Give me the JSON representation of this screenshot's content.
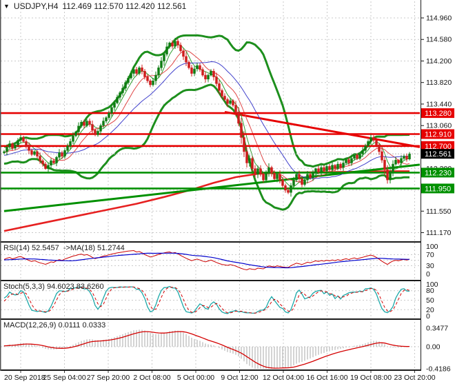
{
  "window": {
    "dropdown_icon": "▼",
    "symbol_title": "USDJPY,H4",
    "ohlc_readout": "112.469 112.570 112.420 112.561"
  },
  "colors": {
    "background": "#ffffff",
    "grid": "#c9c9c9",
    "bull_candle": "#0e7d12",
    "bear_candle": "#cf1d1d",
    "bollinger_band": "#1d8f1d",
    "resistance_line": "#e60000",
    "support_line": "#009000",
    "trend_red": "#e60000",
    "trend_green": "#009000",
    "slow_ma_red": "#e62020",
    "fast_ma_green": "#2f9e2f",
    "fast_ma_red": "#e04545",
    "fast_ma_blue": "#4040cc",
    "current_price_badge": "#000000",
    "rsi_line": "#cc0000",
    "rsi_ma_line": "#0000cc",
    "stoch_k_line": "#1ba8a8",
    "stoch_d_line": "#d40000",
    "macd_histogram": "#a8a8a8",
    "macd_signal": "#d40000"
  },
  "chart_data": {
    "type": "candlestick",
    "title": "USDJPY,H4",
    "symbol": "USDJPY",
    "timeframe": "H4",
    "last_ohlc": {
      "open": 112.469,
      "high": 112.57,
      "low": 112.42,
      "close": 112.561
    },
    "x_tick_labels": [
      "20 Sep 2018",
      "25 Sep 04:00",
      "27 Sep 20:00",
      "2 Oct 08:00",
      "5 Oct 00:00",
      "9 Oct 12:00",
      "12 Oct 04:00",
      "16 Oct 16:00",
      "19 Oct 08:00",
      "23 Oct 20:00"
    ],
    "y_tick_labels": [
      "114.960",
      "114.580",
      "114.200",
      "113.820",
      "113.440",
      "113.060",
      "112.300",
      "111.550",
      "111.170"
    ],
    "y_range": [
      111.05,
      115.27
    ],
    "closes": [
      112.6,
      112.68,
      112.74,
      112.66,
      112.72,
      112.8,
      112.85,
      112.78,
      112.7,
      112.62,
      112.55,
      112.6,
      112.52,
      112.44,
      112.38,
      112.3,
      112.36,
      112.44,
      112.4,
      112.5,
      112.58,
      112.52,
      112.62,
      112.7,
      112.78,
      112.88,
      112.95,
      113.05,
      113.12,
      113.06,
      113.14,
      113.08,
      112.98,
      112.9,
      112.96,
      113.06,
      113.14,
      113.2,
      113.28,
      113.38,
      113.46,
      113.56,
      113.64,
      113.72,
      113.82,
      113.9,
      113.98,
      114.05,
      113.98,
      114.08,
      114.02,
      113.92,
      113.85,
      113.78,
      113.85,
      113.95,
      114.08,
      114.2,
      114.32,
      114.45,
      114.52,
      114.46,
      114.55,
      114.48,
      114.38,
      114.28,
      114.18,
      114.08,
      113.98,
      114.06,
      114.12,
      114.05,
      113.95,
      113.88,
      113.95,
      114.02,
      113.92,
      113.8,
      113.68,
      113.58,
      113.52,
      113.45,
      113.5,
      113.42,
      113.3,
      113.1,
      112.85,
      112.6,
      112.4,
      112.48,
      112.3,
      112.2,
      112.3,
      112.2,
      112.1,
      112.22,
      112.32,
      112.22,
      112.12,
      112.2,
      112.1,
      112.0,
      111.92,
      111.88,
      112.0,
      112.1,
      112.2,
      112.12,
      112.02,
      112.1,
      112.2,
      112.14,
      112.22,
      112.3,
      112.24,
      112.32,
      112.26,
      112.34,
      112.28,
      112.36,
      112.3,
      112.38,
      112.32,
      112.4,
      112.46,
      112.4,
      112.48,
      112.54,
      112.48,
      112.56,
      112.62,
      112.7,
      112.78,
      112.85,
      112.8,
      112.72,
      112.6,
      112.45,
      112.28,
      112.1,
      112.25,
      112.38,
      112.45,
      112.4,
      112.48,
      112.52,
      112.47,
      112.561
    ],
    "warmup_closes": [
      112.52,
      112.44,
      112.38,
      112.45,
      112.52,
      112.46,
      112.56,
      112.62,
      112.52,
      112.42,
      112.48,
      112.58,
      112.54,
      112.6,
      112.66,
      112.6,
      112.52,
      112.56,
      112.62,
      112.58
    ],
    "levels": {
      "resistance": [
        113.28,
        112.91,
        112.7
      ],
      "support": [
        112.23,
        111.95
      ],
      "current_price": 112.561
    },
    "trendlines": [
      {
        "name": "descending-resistance-trendline",
        "color": "#e60000",
        "from": [
          80,
          113.3
        ],
        "to": [
          161,
          112.68
        ]
      },
      {
        "name": "ascending-support-trendline",
        "color": "#009000",
        "from": [
          0,
          111.55
        ],
        "to": [
          161,
          112.37
        ]
      }
    ],
    "slow_ma_red_points": [
      [
        0,
        111.2
      ],
      [
        12,
        111.32
      ],
      [
        24,
        111.44
      ],
      [
        36,
        111.56
      ],
      [
        48,
        111.68
      ],
      [
        58,
        111.8
      ],
      [
        68,
        111.93
      ],
      [
        76,
        112.05
      ],
      [
        84,
        112.15
      ],
      [
        92,
        112.21
      ],
      [
        100,
        112.23
      ],
      [
        110,
        112.235
      ],
      [
        120,
        112.24
      ],
      [
        128,
        112.245
      ],
      [
        134,
        112.25
      ],
      [
        140,
        112.255
      ],
      [
        147,
        112.255
      ]
    ],
    "indicators": {
      "bollinger": {
        "period": 20,
        "deviation": 2
      },
      "fast_ma_periods": {
        "green": 5,
        "red": 10,
        "blue": 21
      },
      "rsi": {
        "label": "RSI(14) 52.5457  ->MA(18) 51.2744",
        "period": 14,
        "ma_period": 18,
        "value": 52.5457,
        "ma_value": 51.2744,
        "levels": [
          70,
          50,
          30
        ],
        "ticks": [
          "100",
          "70",
          "30",
          "0"
        ]
      },
      "stoch": {
        "label": "Stoch(5,3,3) 94.6023 83.6260",
        "k_value": 94.6023,
        "d_value": 83.626,
        "levels": [
          80,
          50,
          20
        ],
        "ticks": [
          "100",
          "80",
          "50",
          "20",
          "0"
        ]
      },
      "macd": {
        "label": "MACD(12,26,9) 0.0111 0.0333",
        "value": 0.0111,
        "signal_value": 0.0333,
        "ticks": [
          "0.3477",
          "0.00",
          "-0.4186"
        ]
      }
    }
  }
}
